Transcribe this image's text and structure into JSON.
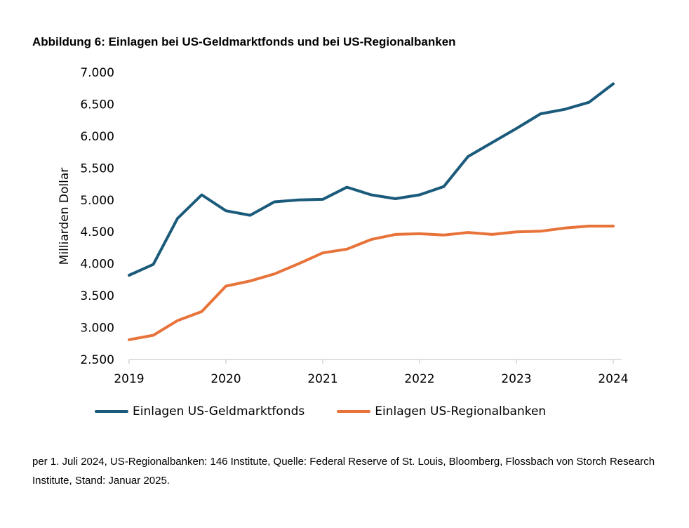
{
  "title": "Abbildung 6: Einlagen bei US-Geldmarktfonds und bei US-Regionalbanken",
  "footnote": "per 1. Juli 2024, US-Regionalbanken: 146 Institute, Quelle: Federal Reserve of St. Louis, Bloomberg, Flossbach von Storch Research Institute, Stand: Januar 2025.",
  "chart_data": {
    "type": "line",
    "title": "Abbildung 6: Einlagen bei US-Geldmarktfonds und bei US-Regionalbanken",
    "xlabel": "",
    "ylabel": "Milliarden Dollar",
    "ylim": [
      2500,
      7000
    ],
    "yticks": [
      2500,
      3000,
      3500,
      4000,
      4500,
      5000,
      5500,
      6000,
      6500,
      7000
    ],
    "ytick_labels": [
      "2.500",
      "3.000",
      "3.500",
      "4.000",
      "4.500",
      "5.000",
      "5.500",
      "6.000",
      "6.500",
      "7.000"
    ],
    "xlim": [
      2019,
      2024
    ],
    "xticks": [
      2019,
      2020,
      2021,
      2022,
      2023,
      2024
    ],
    "xtick_labels": [
      "2019",
      "2020",
      "2021",
      "2022",
      "2023",
      "2024"
    ],
    "legend_position": "bottom",
    "grid": false,
    "series": [
      {
        "name": "Einlagen US-Geldmarktfonds",
        "color": "#1a5a7a",
        "x": [
          2019.0,
          2019.25,
          2019.5,
          2019.75,
          2020.0,
          2020.25,
          2020.5,
          2020.75,
          2021.0,
          2021.25,
          2021.5,
          2021.75,
          2022.0,
          2022.25,
          2022.5,
          2022.75,
          2023.0,
          2023.25,
          2023.5,
          2023.75,
          2024.0
        ],
        "values": [
          3820,
          3990,
          4710,
          5080,
          4830,
          4760,
          4970,
          5000,
          5010,
          5200,
          5080,
          5020,
          5080,
          5210,
          5680,
          5900,
          6120,
          6350,
          6420,
          6530,
          6820
        ]
      },
      {
        "name": "Einlagen US-Regionalbanken",
        "color": "#e8733a",
        "x": [
          2019.0,
          2019.25,
          2019.5,
          2019.75,
          2020.0,
          2020.25,
          2020.5,
          2020.75,
          2021.0,
          2021.25,
          2021.5,
          2021.75,
          2022.0,
          2022.25,
          2022.5,
          2022.75,
          2023.0,
          2023.25,
          2023.5,
          2023.75,
          2024.0
        ],
        "values": [
          2810,
          2880,
          3110,
          3250,
          3650,
          3730,
          3840,
          4000,
          4170,
          4230,
          4380,
          4460,
          4470,
          4450,
          4490,
          4460,
          4500,
          4510,
          4560,
          4590,
          4590
        ]
      }
    ]
  }
}
